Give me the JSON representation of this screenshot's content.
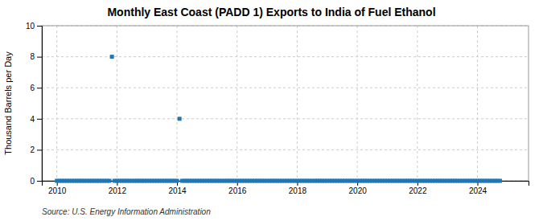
{
  "chart_data": {
    "type": "scatter",
    "title": "Monthly East Coast (PADD 1) Exports to India of Fuel Ethanol",
    "ylabel": "Thousand Barrels per Day",
    "source": "Source: U.S. Energy Information Administration",
    "marker": "square",
    "grid": true,
    "xlim": [
      2009.5,
      2025.7
    ],
    "ylim": [
      0,
      10
    ],
    "xticks": [
      2010,
      2012,
      2014,
      2016,
      2018,
      2020,
      2022,
      2024
    ],
    "yticks": [
      0,
      2,
      4,
      6,
      8,
      10
    ],
    "x": [
      2010.0,
      2010.083,
      2010.167,
      2010.25,
      2010.333,
      2010.417,
      2010.5,
      2010.583,
      2010.667,
      2010.75,
      2010.833,
      2010.917,
      2011.0,
      2011.083,
      2011.167,
      2011.25,
      2011.333,
      2011.417,
      2011.5,
      2011.583,
      2011.667,
      2011.75,
      2011.833,
      2011.917,
      2012.0,
      2012.083,
      2012.167,
      2012.25,
      2012.333,
      2012.417,
      2012.5,
      2012.583,
      2012.667,
      2012.75,
      2012.833,
      2012.917,
      2013.0,
      2013.083,
      2013.167,
      2013.25,
      2013.333,
      2013.417,
      2013.5,
      2013.583,
      2013.667,
      2013.75,
      2013.833,
      2013.917,
      2014.0,
      2014.083,
      2014.167,
      2014.25,
      2014.333,
      2014.417,
      2014.5,
      2014.583,
      2014.667,
      2014.75,
      2014.833,
      2014.917,
      2015.0,
      2015.083,
      2015.167,
      2015.25,
      2015.333,
      2015.417,
      2015.5,
      2015.583,
      2015.667,
      2015.75,
      2015.833,
      2015.917,
      2016.0,
      2016.083,
      2016.167,
      2016.25,
      2016.333,
      2016.417,
      2016.5,
      2016.583,
      2016.667,
      2016.75,
      2016.833,
      2016.917,
      2017.0,
      2017.083,
      2017.167,
      2017.25,
      2017.333,
      2017.417,
      2017.5,
      2017.583,
      2017.667,
      2017.75,
      2017.833,
      2017.917,
      2018.0,
      2018.083,
      2018.167,
      2018.25,
      2018.333,
      2018.417,
      2018.5,
      2018.583,
      2018.667,
      2018.75,
      2018.833,
      2018.917,
      2019.0,
      2019.083,
      2019.167,
      2019.25,
      2019.333,
      2019.417,
      2019.5,
      2019.583,
      2019.667,
      2019.75,
      2019.833,
      2019.917,
      2020.0,
      2020.083,
      2020.167,
      2020.25,
      2020.333,
      2020.417,
      2020.5,
      2020.583,
      2020.667,
      2020.75,
      2020.833,
      2020.917,
      2021.0,
      2021.083,
      2021.167,
      2021.25,
      2021.333,
      2021.417,
      2021.5,
      2021.583,
      2021.667,
      2021.75,
      2021.833,
      2021.917,
      2022.0,
      2022.083,
      2022.167,
      2022.25,
      2022.333,
      2022.417,
      2022.5,
      2022.583,
      2022.667,
      2022.75,
      2022.833,
      2022.917,
      2023.0,
      2023.083,
      2023.167,
      2023.25,
      2023.333,
      2023.417,
      2023.5,
      2023.583,
      2023.667,
      2023.75,
      2023.833,
      2023.917,
      2024.0,
      2024.083,
      2024.167,
      2024.25,
      2024.333,
      2024.417,
      2024.5,
      2024.583,
      2024.667,
      2024.75
    ],
    "values": [
      0.0,
      0.0,
      0.0,
      0.0,
      0.0,
      0.0,
      0.0,
      0.0,
      0.0,
      0.0,
      0.0,
      0.0,
      0.0,
      0.0,
      0.0,
      0.0,
      0.0,
      0.0,
      0.0,
      0.0,
      0.0,
      0.0,
      8.0,
      0.0,
      0.0,
      0.0,
      0.0,
      0.0,
      0.0,
      0.0,
      0.0,
      0.0,
      0.0,
      0.0,
      0.0,
      0.0,
      0.0,
      0.0,
      0.0,
      0.0,
      0.0,
      0.0,
      0.0,
      0.0,
      0.0,
      0.0,
      0.0,
      0.0,
      0.0,
      4.0,
      0.0,
      0.0,
      0.0,
      0.0,
      0.0,
      0.0,
      0.0,
      0.0,
      0.0,
      0.0,
      0.0,
      0.0,
      0.0,
      0.0,
      0.0,
      0.0,
      0.0,
      0.0,
      0.0,
      0.0,
      0.0,
      0.0,
      0.0,
      0.0,
      0.0,
      0.0,
      0.0,
      0.0,
      0.0,
      0.0,
      0.0,
      0.0,
      0.0,
      0.0,
      0.0,
      0.0,
      0.0,
      0.0,
      0.0,
      0.0,
      0.0,
      0.0,
      0.0,
      0.0,
      0.0,
      0.0,
      0.0,
      0.0,
      0.0,
      0.0,
      0.0,
      0.0,
      0.0,
      0.0,
      0.0,
      0.0,
      0.0,
      0.0,
      0.0,
      0.0,
      0.0,
      0.0,
      0.0,
      0.0,
      0.0,
      0.0,
      0.0,
      0.0,
      0.0,
      0.0,
      0.0,
      0.0,
      0.0,
      0.0,
      0.0,
      0.0,
      0.0,
      0.0,
      0.0,
      0.0,
      0.0,
      0.0,
      0.0,
      0.0,
      0.0,
      0.0,
      0.0,
      0.0,
      0.0,
      0.0,
      0.0,
      0.0,
      0.0,
      0.0,
      0.0,
      0.0,
      0.0,
      0.0,
      0.0,
      0.0,
      0.0,
      0.0,
      0.0,
      0.0,
      0.0,
      0.0,
      0.0,
      0.0,
      0.0,
      0.0,
      0.0,
      0.0,
      0.0,
      0.0,
      0.0,
      0.0,
      0.0,
      0.0,
      0.0,
      0.0,
      0.0,
      0.0,
      0.0,
      0.0,
      0.0,
      0.0,
      0.0,
      0.0
    ]
  }
}
